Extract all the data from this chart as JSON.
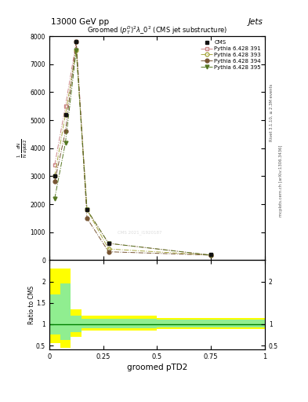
{
  "title_top": "13000 GeV pp",
  "title_right": "Jets",
  "plot_title": "Groomed $(p_T^D)^2\\lambda\\_0^2$ (CMS jet substructure)",
  "xlabel": "groomed pTD2",
  "ylabel_ratio": "Ratio to CMS",
  "right_label1": "Rivet 3.1.10, ≥ 2.3M events",
  "right_label2": "mcplots.cern.ch [arXiv:1306.3436]",
  "watermark": "CMS 2021_I1920187",
  "xlim": [
    0,
    1.0
  ],
  "ylim_main": [
    0,
    8000
  ],
  "ylim_ratio": [
    0.4,
    2.5
  ],
  "cms_x": [
    0.025,
    0.075,
    0.125,
    0.175,
    0.275,
    0.75
  ],
  "cms_y": [
    3000,
    5200,
    7800,
    1800,
    600,
    200
  ],
  "p391_x": [
    0.025,
    0.075,
    0.125,
    0.175,
    0.275,
    0.75
  ],
  "p391_y": [
    3400,
    5500,
    7800,
    1800,
    600,
    180
  ],
  "p393_x": [
    0.025,
    0.075,
    0.125,
    0.175,
    0.275,
    0.75
  ],
  "p393_y": [
    3000,
    5200,
    7500,
    1800,
    400,
    180
  ],
  "p394_x": [
    0.025,
    0.075,
    0.125,
    0.175,
    0.275,
    0.75
  ],
  "p394_y": [
    2800,
    4600,
    7800,
    1500,
    300,
    180
  ],
  "p395_x": [
    0.025,
    0.075,
    0.125,
    0.175,
    0.275,
    0.75
  ],
  "p395_y": [
    2200,
    4200,
    7500,
    1800,
    600,
    180
  ],
  "cms_color": "#111111",
  "p391_color": "#cc8888",
  "p393_color": "#aaaa44",
  "p394_color": "#775533",
  "p395_color": "#557722",
  "bin_edges": [
    0.0,
    0.05,
    0.1,
    0.15,
    0.2,
    0.5,
    1.0
  ],
  "yellow_lo": [
    0.55,
    0.45,
    0.7,
    0.85,
    0.85,
    0.88,
    0.88
  ],
  "yellow_hi": [
    2.3,
    2.3,
    1.35,
    1.2,
    1.2,
    1.15,
    1.15
  ],
  "green_lo": [
    0.75,
    0.62,
    0.82,
    0.9,
    0.9,
    0.92,
    0.92
  ],
  "green_hi": [
    1.7,
    1.95,
    1.2,
    1.12,
    1.12,
    1.1,
    1.1
  ],
  "yticks_main": [
    0,
    1000,
    2000,
    3000,
    4000,
    5000,
    6000,
    7000,
    8000
  ],
  "ytick_labels": [
    "0",
    "1000",
    "2000",
    "3000",
    "4000",
    "5000",
    "6000",
    "7000",
    "8000"
  ],
  "xticks": [
    0,
    0.25,
    0.5,
    0.75,
    1.0
  ],
  "xtick_labels": [
    "0",
    "0.25",
    "0.5",
    "0.75",
    "1"
  ],
  "yticks_ratio": [
    0.5,
    1.0,
    1.5,
    2.0
  ],
  "ytick_ratio_labels": [
    "0.5",
    "1",
    "1.5",
    "2"
  ],
  "yticks_ratio_r": [
    0.5,
    1.0,
    2.0
  ],
  "ytick_ratio_r_labels": [
    "0.5",
    "1",
    "2"
  ]
}
